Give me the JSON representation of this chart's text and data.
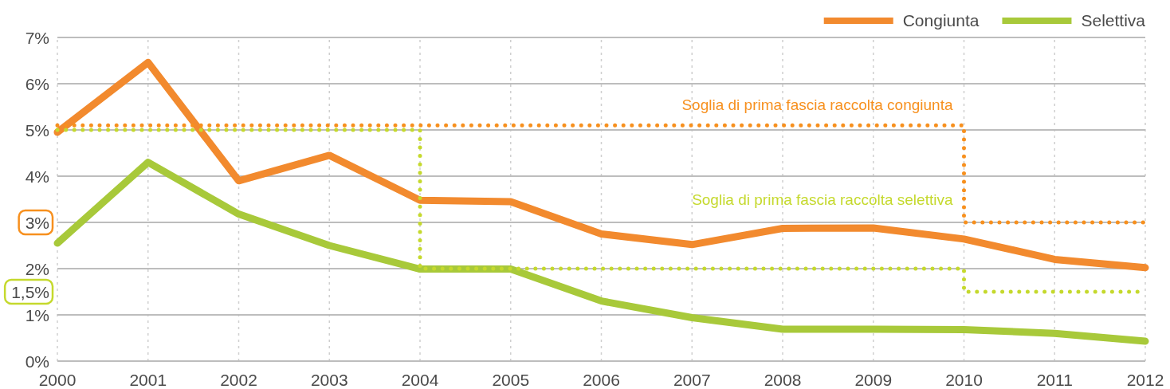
{
  "chart_data": {
    "type": "line",
    "x": [
      2000,
      2001,
      2002,
      2003,
      2004,
      2005,
      2006,
      2007,
      2008,
      2009,
      2010,
      2011,
      2012
    ],
    "xlim": [
      2000,
      2012
    ],
    "xticks": [
      2000,
      2001,
      2002,
      2003,
      2004,
      2005,
      2006,
      2007,
      2008,
      2009,
      2010,
      2011,
      2012
    ],
    "ylim": [
      0,
      7
    ],
    "yticks": [
      {
        "value": 0,
        "label": "0%"
      },
      {
        "value": 1,
        "label": "1%"
      },
      {
        "value": 1.5,
        "label": "1,5%"
      },
      {
        "value": 2,
        "label": "2%"
      },
      {
        "value": 3,
        "label": "3%"
      },
      {
        "value": 4,
        "label": "4%"
      },
      {
        "value": 5,
        "label": "5%"
      },
      {
        "value": 6,
        "label": "6%"
      },
      {
        "value": 7,
        "label": "7%"
      }
    ],
    "grid": true,
    "legend": "top right",
    "series": [
      {
        "name": "Congiunta",
        "color": "#f28a2e",
        "values": [
          4.95,
          6.46,
          3.9,
          4.45,
          3.48,
          3.45,
          2.75,
          2.52,
          2.87,
          2.88,
          2.64,
          2.2,
          2.02
        ]
      },
      {
        "name": "Selettiva",
        "color": "#a8c93a",
        "values": [
          2.55,
          4.3,
          3.18,
          2.5,
          1.99,
          1.99,
          1.3,
          0.94,
          0.69,
          0.69,
          0.68,
          0.6,
          0.43
        ]
      },
      {
        "name": "Soglia di prima fascia raccolta congiunta",
        "type": "step",
        "line_style": "dotted",
        "color": "#f7901e",
        "x": [
          2000,
          2010,
          2012
        ],
        "values": [
          5.1,
          3,
          3
        ]
      },
      {
        "name": "Soglia di prima fascia raccolta selettiva",
        "type": "step",
        "line_style": "dotted",
        "color": "#c5d92d",
        "x": [
          2000,
          2004,
          2010,
          2012
        ],
        "values": [
          5,
          2,
          1.5,
          1.5
        ]
      }
    ]
  }
}
